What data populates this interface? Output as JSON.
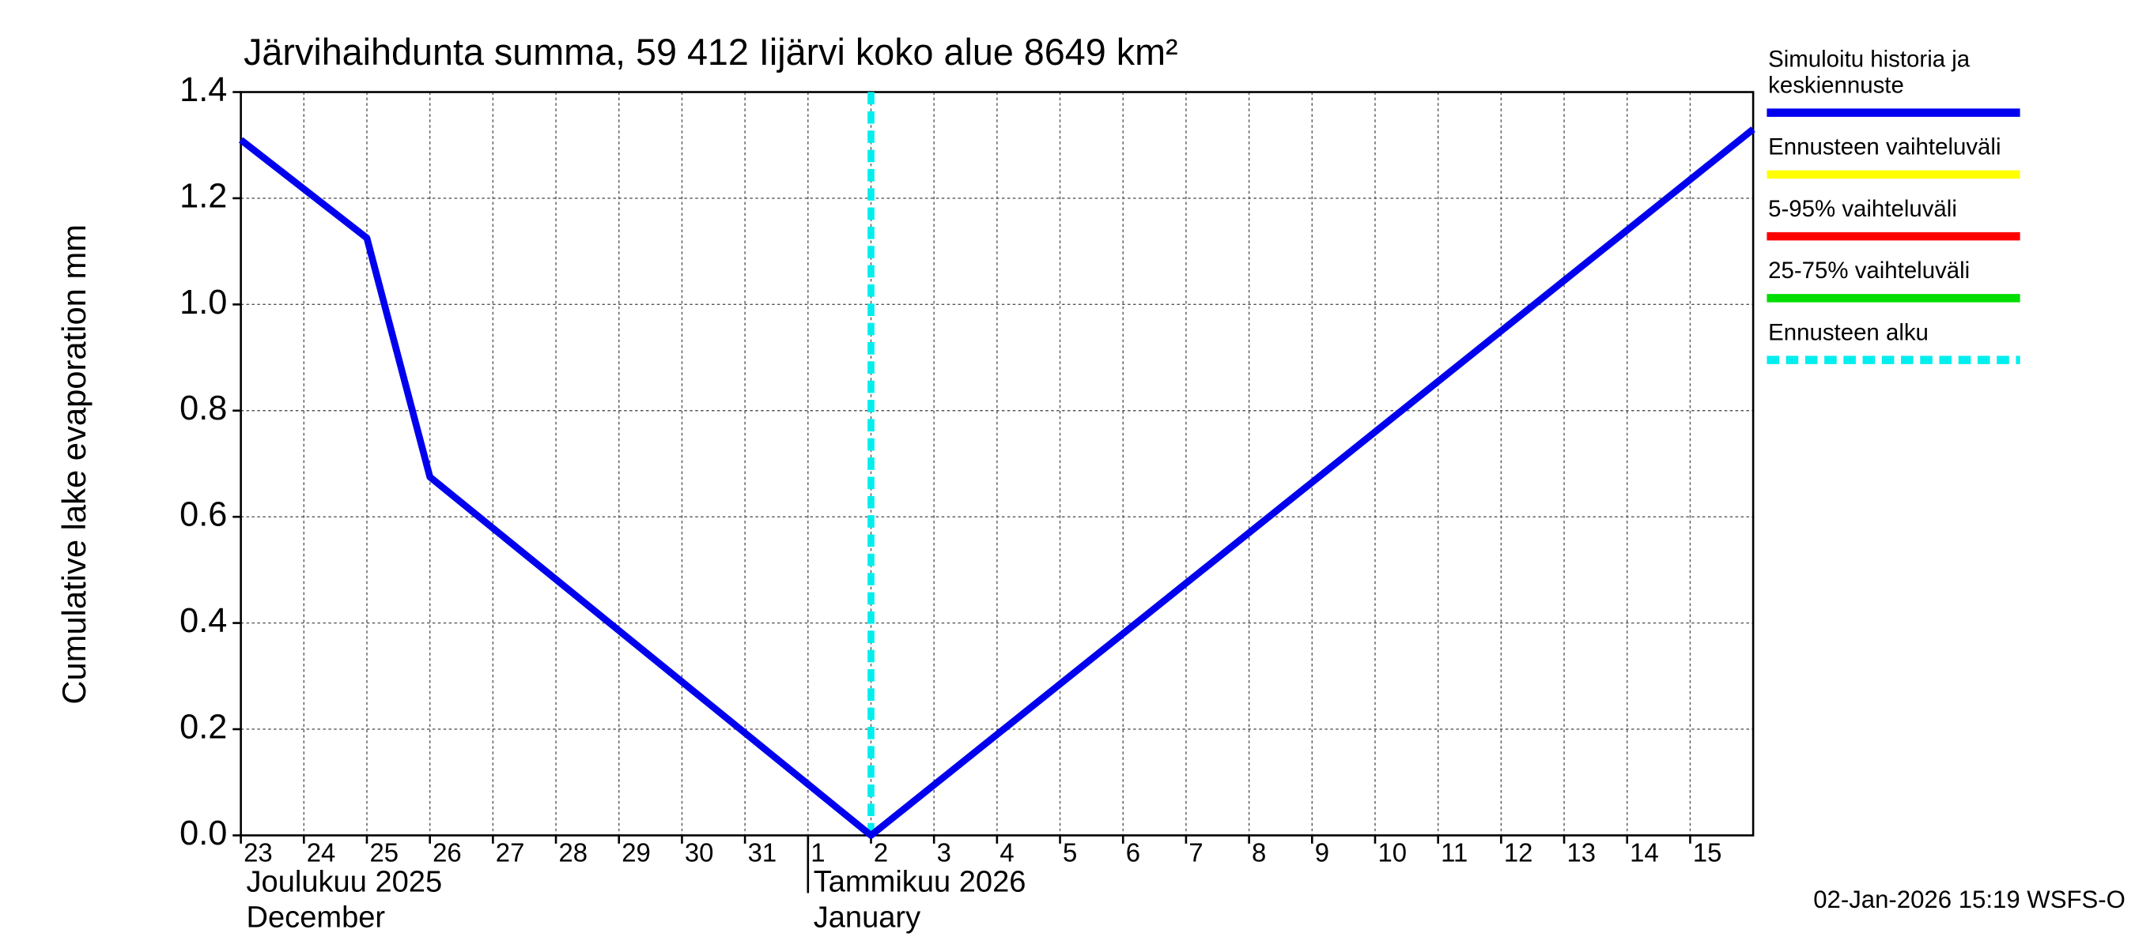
{
  "chart_data": {
    "type": "line",
    "title": "Järvihaihdunta summa, 59 412 Iijärvi koko alue 8649 km²",
    "y_label": "Cumulative lake evaporation   mm",
    "x": [
      "2025-12-23",
      "2025-12-25",
      "2025-12-26",
      "2026-01-02",
      "2026-01-16"
    ],
    "series": [
      {
        "name": "Simuloitu historia ja keskiennuste",
        "color": "#0000ee",
        "values": [
          1.31,
          1.125,
          0.675,
          0,
          1.33
        ]
      }
    ],
    "legend": [
      {
        "name": "Simuloitu historia ja keskiennuste",
        "color": "#0000ee"
      },
      {
        "name": "Ennusteen vaihteluväli",
        "color": "#ffff00"
      },
      {
        "name": "5-95% vaihteluväli",
        "color": "#ff0000"
      },
      {
        "name": "25-75% vaihteluväli",
        "color": "#00dd00"
      },
      {
        "name": "Ennusteen alku",
        "color": "#00eeee",
        "dashed": true
      }
    ],
    "forecast_start": "2026-01-02",
    "xlim": [
      "2025-12-23",
      "2026-01-16"
    ],
    "xticks": [
      {
        "value": "2025-12-23",
        "label": "23"
      },
      {
        "value": "2025-12-24",
        "label": "24"
      },
      {
        "value": "2025-12-25",
        "label": "25"
      },
      {
        "value": "2025-12-26",
        "label": "26"
      },
      {
        "value": "2025-12-27",
        "label": "27"
      },
      {
        "value": "2025-12-28",
        "label": "28"
      },
      {
        "value": "2025-12-29",
        "label": "29"
      },
      {
        "value": "2025-12-30",
        "label": "30"
      },
      {
        "value": "2025-12-31",
        "label": "31"
      },
      {
        "value": "2026-01-01",
        "label": "1"
      },
      {
        "value": "2026-01-02",
        "label": "2"
      },
      {
        "value": "2026-01-03",
        "label": "3"
      },
      {
        "value": "2026-01-04",
        "label": "4"
      },
      {
        "value": "2026-01-05",
        "label": "5"
      },
      {
        "value": "2026-01-06",
        "label": "6"
      },
      {
        "value": "2026-01-07",
        "label": "7"
      },
      {
        "value": "2026-01-08",
        "label": "8"
      },
      {
        "value": "2026-01-09",
        "label": "9"
      },
      {
        "value": "2026-01-10",
        "label": "10"
      },
      {
        "value": "2026-01-11",
        "label": "11"
      },
      {
        "value": "2026-01-12",
        "label": "12"
      },
      {
        "value": "2026-01-13",
        "label": "13"
      },
      {
        "value": "2026-01-14",
        "label": "14"
      },
      {
        "value": "2026-01-15",
        "label": "15"
      }
    ],
    "months": [
      {
        "start": "2025-12-23",
        "label": "Joulukuu  2025",
        "label_en": "December"
      },
      {
        "start": "2026-01-01",
        "label": "Tammikuu  2026",
        "label_en": "January"
      }
    ],
    "ylim": [
      0,
      1.4
    ],
    "yticks": [
      {
        "value": 0,
        "label": "0.0"
      },
      {
        "value": 0.2,
        "label": "0.2"
      },
      {
        "value": 0.4,
        "label": "0.4"
      },
      {
        "value": 0.6,
        "label": "0.6"
      },
      {
        "value": 0.8,
        "label": "0.8"
      },
      {
        "value": 1.0,
        "label": "1.0"
      },
      {
        "value": 1.2,
        "label": "1.2"
      },
      {
        "value": 1.4,
        "label": "1.4"
      }
    ],
    "grid": true,
    "footer": "02-Jan-2026 15:19 WSFS-O"
  }
}
